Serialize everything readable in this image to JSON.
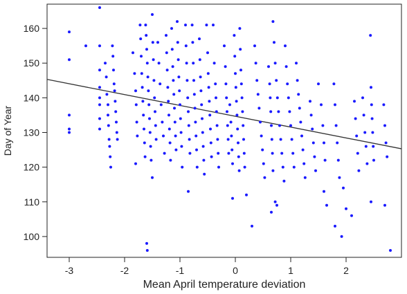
{
  "chart_data": {
    "type": "scatter",
    "xlabel": "Mean April temperature deviation",
    "ylabel": "Day of Year",
    "xlim": [
      -3.4,
      3.0
    ],
    "ylim": [
      94,
      167
    ],
    "x_ticks": [
      -3,
      -2,
      -1,
      0,
      1,
      2
    ],
    "y_ticks": [
      100,
      110,
      120,
      130,
      140,
      150,
      160
    ],
    "point_color": "#1a1aff",
    "trend_color": "#333333",
    "trend_line": {
      "x": [
        -3.4,
        3.0
      ],
      "y": [
        145.3,
        125.3
      ]
    },
    "grid": false,
    "series": [
      {
        "points": [
          [
            -3.0,
            159
          ],
          [
            -3.0,
            151
          ],
          [
            -3.0,
            135
          ],
          [
            -3.0,
            131
          ],
          [
            -3.0,
            130
          ],
          [
            -2.7,
            155
          ],
          [
            -2.45,
            166
          ],
          [
            -2.45,
            155
          ],
          [
            -2.45,
            148
          ],
          [
            -2.45,
            143
          ],
          [
            -2.45,
            140
          ],
          [
            -2.45,
            138
          ],
          [
            -2.45,
            134
          ],
          [
            -2.45,
            131
          ],
          [
            -2.35,
            150
          ],
          [
            -2.33,
            146
          ],
          [
            -2.32,
            141
          ],
          [
            -2.3,
            138
          ],
          [
            -2.3,
            135
          ],
          [
            -2.29,
            132
          ],
          [
            -2.28,
            128
          ],
          [
            -2.27,
            126
          ],
          [
            -2.26,
            123
          ],
          [
            -2.25,
            120
          ],
          [
            -2.22,
            155
          ],
          [
            -2.21,
            152
          ],
          [
            -2.2,
            148
          ],
          [
            -2.19,
            144
          ],
          [
            -2.18,
            142
          ],
          [
            -2.17,
            139
          ],
          [
            -2.16,
            136
          ],
          [
            -2.15,
            133
          ],
          [
            -2.14,
            130
          ],
          [
            -2.13,
            128
          ],
          [
            -1.85,
            153
          ],
          [
            -1.82,
            147
          ],
          [
            -1.8,
            142
          ],
          [
            -1.79,
            138
          ],
          [
            -1.78,
            133
          ],
          [
            -1.77,
            129
          ],
          [
            -1.8,
            121
          ],
          [
            -1.72,
            161
          ],
          [
            -1.71,
            157
          ],
          [
            -1.7,
            152
          ],
          [
            -1.69,
            147
          ],
          [
            -1.68,
            143
          ],
          [
            -1.67,
            139
          ],
          [
            -1.66,
            135
          ],
          [
            -1.65,
            131
          ],
          [
            -1.64,
            127
          ],
          [
            -1.63,
            123
          ],
          [
            -1.62,
            161
          ],
          [
            -1.61,
            158
          ],
          [
            -1.6,
            154
          ],
          [
            -1.59,
            150
          ],
          [
            -1.58,
            146
          ],
          [
            -1.57,
            142
          ],
          [
            -1.56,
            138
          ],
          [
            -1.55,
            134
          ],
          [
            -1.54,
            130
          ],
          [
            -1.53,
            126
          ],
          [
            -1.52,
            122
          ],
          [
            -1.6,
            98
          ],
          [
            -1.59,
            96
          ],
          [
            -1.5,
            164
          ],
          [
            -1.49,
            156
          ],
          [
            -1.48,
            151
          ],
          [
            -1.47,
            145
          ],
          [
            -1.46,
            140
          ],
          [
            -1.45,
            136
          ],
          [
            -1.44,
            132
          ],
          [
            -1.43,
            128
          ],
          [
            -1.5,
            117
          ],
          [
            -1.4,
            156
          ],
          [
            -1.38,
            150
          ],
          [
            -1.36,
            144
          ],
          [
            -1.34,
            138
          ],
          [
            -1.32,
            133
          ],
          [
            -1.3,
            129
          ],
          [
            -1.28,
            124
          ],
          [
            -1.25,
            158
          ],
          [
            -1.24,
            153
          ],
          [
            -1.23,
            148
          ],
          [
            -1.22,
            143
          ],
          [
            -1.21,
            139
          ],
          [
            -1.2,
            135
          ],
          [
            -1.19,
            131
          ],
          [
            -1.18,
            127
          ],
          [
            -1.17,
            122
          ],
          [
            -1.15,
            160
          ],
          [
            -1.14,
            154
          ],
          [
            -1.13,
            149
          ],
          [
            -1.12,
            145
          ],
          [
            -1.11,
            141
          ],
          [
            -1.1,
            137
          ],
          [
            -1.09,
            133
          ],
          [
            -1.08,
            129
          ],
          [
            -1.07,
            125
          ],
          [
            -1.05,
            162
          ],
          [
            -1.04,
            156
          ],
          [
            -1.03,
            151
          ],
          [
            -1.02,
            146
          ],
          [
            -1.01,
            142
          ],
          [
            -1.0,
            138
          ],
          [
            -0.99,
            134
          ],
          [
            -0.98,
            130
          ],
          [
            -0.97,
            126
          ],
          [
            -0.96,
            120
          ],
          [
            -0.9,
            161
          ],
          [
            -0.89,
            155
          ],
          [
            -0.88,
            150
          ],
          [
            -0.87,
            145
          ],
          [
            -0.86,
            140
          ],
          [
            -0.85,
            136
          ],
          [
            -0.84,
            132
          ],
          [
            -0.83,
            128
          ],
          [
            -0.82,
            124
          ],
          [
            -0.85,
            113
          ],
          [
            -0.78,
            161
          ],
          [
            -0.77,
            156
          ],
          [
            -0.76,
            150
          ],
          [
            -0.75,
            145
          ],
          [
            -0.74,
            141
          ],
          [
            -0.73,
            137
          ],
          [
            -0.72,
            133
          ],
          [
            -0.71,
            129
          ],
          [
            -0.7,
            125
          ],
          [
            -0.69,
            120
          ],
          [
            -0.65,
            157
          ],
          [
            -0.64,
            151
          ],
          [
            -0.63,
            146
          ],
          [
            -0.62,
            142
          ],
          [
            -0.61,
            138
          ],
          [
            -0.6,
            134
          ],
          [
            -0.59,
            130
          ],
          [
            -0.58,
            126
          ],
          [
            -0.57,
            122
          ],
          [
            -0.56,
            118
          ],
          [
            -0.52,
            161
          ],
          [
            -0.5,
            153
          ],
          [
            -0.49,
            147
          ],
          [
            -0.48,
            143
          ],
          [
            -0.47,
            139
          ],
          [
            -0.46,
            135
          ],
          [
            -0.45,
            131
          ],
          [
            -0.44,
            127
          ],
          [
            -0.43,
            123
          ],
          [
            -0.4,
            161
          ],
          [
            -0.38,
            150
          ],
          [
            -0.36,
            144
          ],
          [
            -0.35,
            140
          ],
          [
            -0.34,
            136
          ],
          [
            -0.33,
            132
          ],
          [
            -0.32,
            128
          ],
          [
            -0.31,
            124
          ],
          [
            -0.3,
            120
          ],
          [
            -0.2,
            155
          ],
          [
            -0.18,
            149
          ],
          [
            -0.17,
            144
          ],
          [
            -0.16,
            140
          ],
          [
            -0.15,
            136
          ],
          [
            -0.14,
            132
          ],
          [
            -0.13,
            128
          ],
          [
            -0.12,
            124
          ],
          [
            -0.1,
            138
          ],
          [
            -0.08,
            133
          ],
          [
            -0.07,
            129
          ],
          [
            -0.06,
            125
          ],
          [
            -0.05,
            121
          ],
          [
            -0.02,
            158
          ],
          [
            -0.01,
            152
          ],
          [
            0.0,
            147
          ],
          [
            0.01,
            143
          ],
          [
            0.02,
            139
          ],
          [
            0.03,
            135
          ],
          [
            0.04,
            131
          ],
          [
            0.05,
            127
          ],
          [
            0.06,
            123
          ],
          [
            0.07,
            119
          ],
          [
            0.08,
            160
          ],
          [
            0.09,
            154
          ],
          [
            0.1,
            148
          ],
          [
            0.11,
            144
          ],
          [
            0.12,
            140
          ],
          [
            0.13,
            136
          ],
          [
            0.14,
            132
          ],
          [
            0.15,
            128
          ],
          [
            0.16,
            124
          ],
          [
            0.17,
            120
          ],
          [
            -0.05,
            111
          ],
          [
            0.2,
            112
          ],
          [
            0.3,
            103
          ],
          [
            0.35,
            155
          ],
          [
            0.37,
            150
          ],
          [
            0.39,
            145
          ],
          [
            0.41,
            141
          ],
          [
            0.43,
            137
          ],
          [
            0.45,
            133
          ],
          [
            0.47,
            129
          ],
          [
            0.49,
            125
          ],
          [
            0.51,
            121
          ],
          [
            0.53,
            117
          ],
          [
            0.6,
            149
          ],
          [
            0.62,
            144
          ],
          [
            0.63,
            140
          ],
          [
            0.64,
            136
          ],
          [
            0.65,
            132
          ],
          [
            0.66,
            128
          ],
          [
            0.67,
            124
          ],
          [
            0.68,
            119
          ],
          [
            0.68,
            162
          ],
          [
            0.7,
            156
          ],
          [
            0.72,
            150
          ],
          [
            0.74,
            145
          ],
          [
            0.76,
            140
          ],
          [
            0.78,
            136
          ],
          [
            0.8,
            132
          ],
          [
            0.82,
            128
          ],
          [
            0.84,
            124
          ],
          [
            0.86,
            120
          ],
          [
            0.88,
            116
          ],
          [
            0.72,
            110
          ],
          [
            0.75,
            109
          ],
          [
            0.65,
            107
          ],
          [
            0.9,
            155
          ],
          [
            0.92,
            149
          ],
          [
            0.94,
            144
          ],
          [
            0.96,
            140
          ],
          [
            0.98,
            136
          ],
          [
            1.0,
            132
          ],
          [
            1.02,
            128
          ],
          [
            1.04,
            124
          ],
          [
            1.06,
            120
          ],
          [
            1.1,
            150
          ],
          [
            1.12,
            145
          ],
          [
            1.14,
            141
          ],
          [
            1.16,
            137
          ],
          [
            1.18,
            133
          ],
          [
            1.2,
            129
          ],
          [
            1.22,
            125
          ],
          [
            1.24,
            121
          ],
          [
            1.26,
            117
          ],
          [
            1.35,
            139
          ],
          [
            1.37,
            135
          ],
          [
            1.39,
            131
          ],
          [
            1.41,
            127
          ],
          [
            1.43,
            123
          ],
          [
            1.45,
            119
          ],
          [
            1.5,
            144
          ],
          [
            1.55,
            138
          ],
          [
            1.58,
            132
          ],
          [
            1.6,
            127
          ],
          [
            1.62,
            122
          ],
          [
            1.6,
            113
          ],
          [
            1.65,
            109
          ],
          [
            1.78,
            144
          ],
          [
            1.8,
            138
          ],
          [
            1.82,
            132
          ],
          [
            1.84,
            127
          ],
          [
            1.86,
            122
          ],
          [
            1.88,
            117
          ],
          [
            1.8,
            103
          ],
          [
            1.92,
            100
          ],
          [
            1.95,
            114
          ],
          [
            2.0,
            108
          ],
          [
            2.1,
            106
          ],
          [
            2.15,
            139
          ],
          [
            2.17,
            134
          ],
          [
            2.19,
            129
          ],
          [
            2.21,
            124
          ],
          [
            2.23,
            119
          ],
          [
            2.3,
            140
          ],
          [
            2.32,
            135
          ],
          [
            2.34,
            130
          ],
          [
            2.36,
            126
          ],
          [
            2.38,
            121
          ],
          [
            2.44,
            158
          ],
          [
            2.45,
            143
          ],
          [
            2.46,
            138
          ],
          [
            2.47,
            134
          ],
          [
            2.48,
            130
          ],
          [
            2.49,
            126
          ],
          [
            2.5,
            122
          ],
          [
            2.45,
            110
          ],
          [
            2.68,
            138
          ],
          [
            2.7,
            132
          ],
          [
            2.72,
            127
          ],
          [
            2.74,
            123
          ],
          [
            2.7,
            109
          ],
          [
            2.8,
            96
          ]
        ]
      }
    ]
  }
}
